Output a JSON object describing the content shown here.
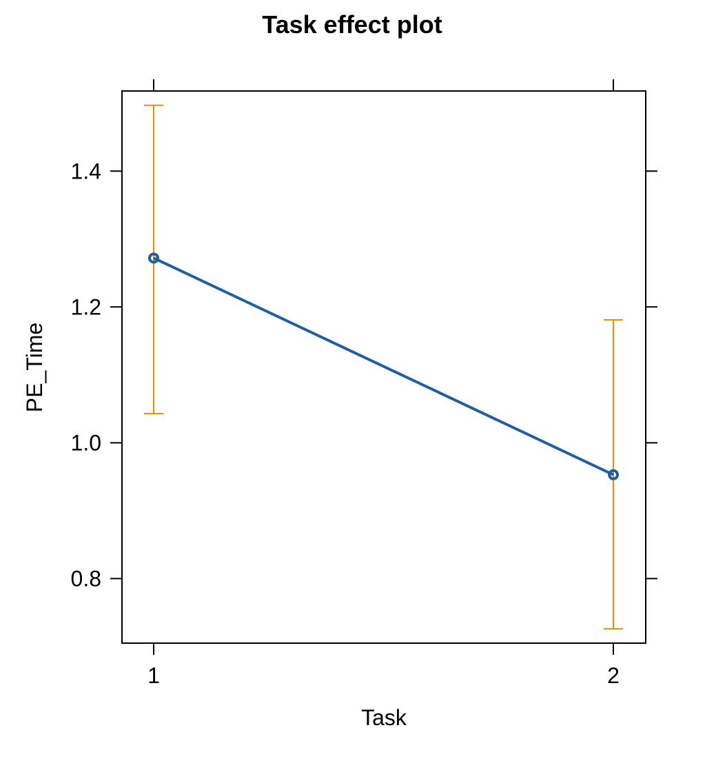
{
  "chart_data": {
    "type": "line",
    "title": "Task effect plot",
    "xlabel": "Task",
    "ylabel": "PE_Time",
    "categories": [
      "1",
      "2"
    ],
    "series": [
      {
        "values": [
          1.272,
          0.953
        ],
        "lower": [
          1.043,
          0.726
        ],
        "upper": [
          1.497,
          1.181
        ]
      }
    ],
    "ylim": [
      0.705,
      1.518
    ],
    "y_ticks": [
      0.8,
      1.0,
      1.2,
      1.4
    ],
    "y_tick_labels": [
      "0.8",
      "1.0",
      "1.2",
      "1.4"
    ],
    "grid": false,
    "colors": {
      "line": "#1f5fa0",
      "error_bars": "#e0900a",
      "axes": "#000000"
    }
  }
}
